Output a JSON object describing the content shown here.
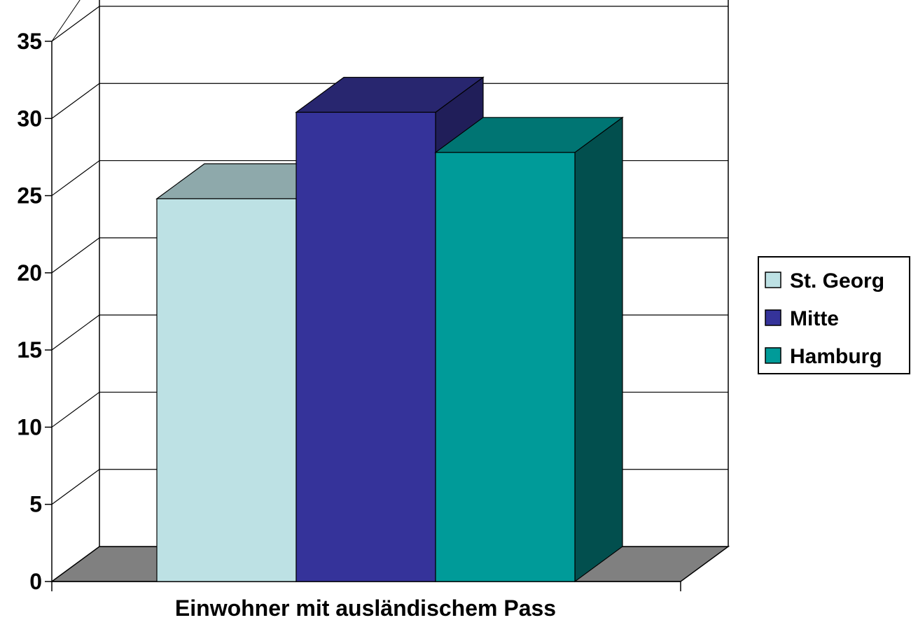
{
  "chart_data": {
    "type": "bar",
    "style": "3d-column",
    "title": "",
    "xlabel": "Einwohner mit ausländischem Pass",
    "ylabel": "",
    "ylim": [
      0,
      35
    ],
    "yticks": [
      0,
      5,
      10,
      15,
      20,
      25,
      30,
      35
    ],
    "ytick_labels": [
      "0",
      "5",
      "10",
      "15",
      "20",
      "25",
      "30",
      "35"
    ],
    "grid": true,
    "legend_position": "right",
    "series": [
      {
        "name": "St. Georg",
        "value": 24.8,
        "color": "#BDE1E4",
        "top_color": "#8EA9AB",
        "side_color": "#8EA9AB"
      },
      {
        "name": "Mitte",
        "value": 30.4,
        "color": "#35339A",
        "top_color": "#28266F",
        "side_color": "#201E59"
      },
      {
        "name": "Hamburg",
        "value": 27.8,
        "color": "#009B99",
        "top_color": "#007573",
        "side_color": "#024F4E"
      }
    ],
    "floor_color": "#808080"
  }
}
